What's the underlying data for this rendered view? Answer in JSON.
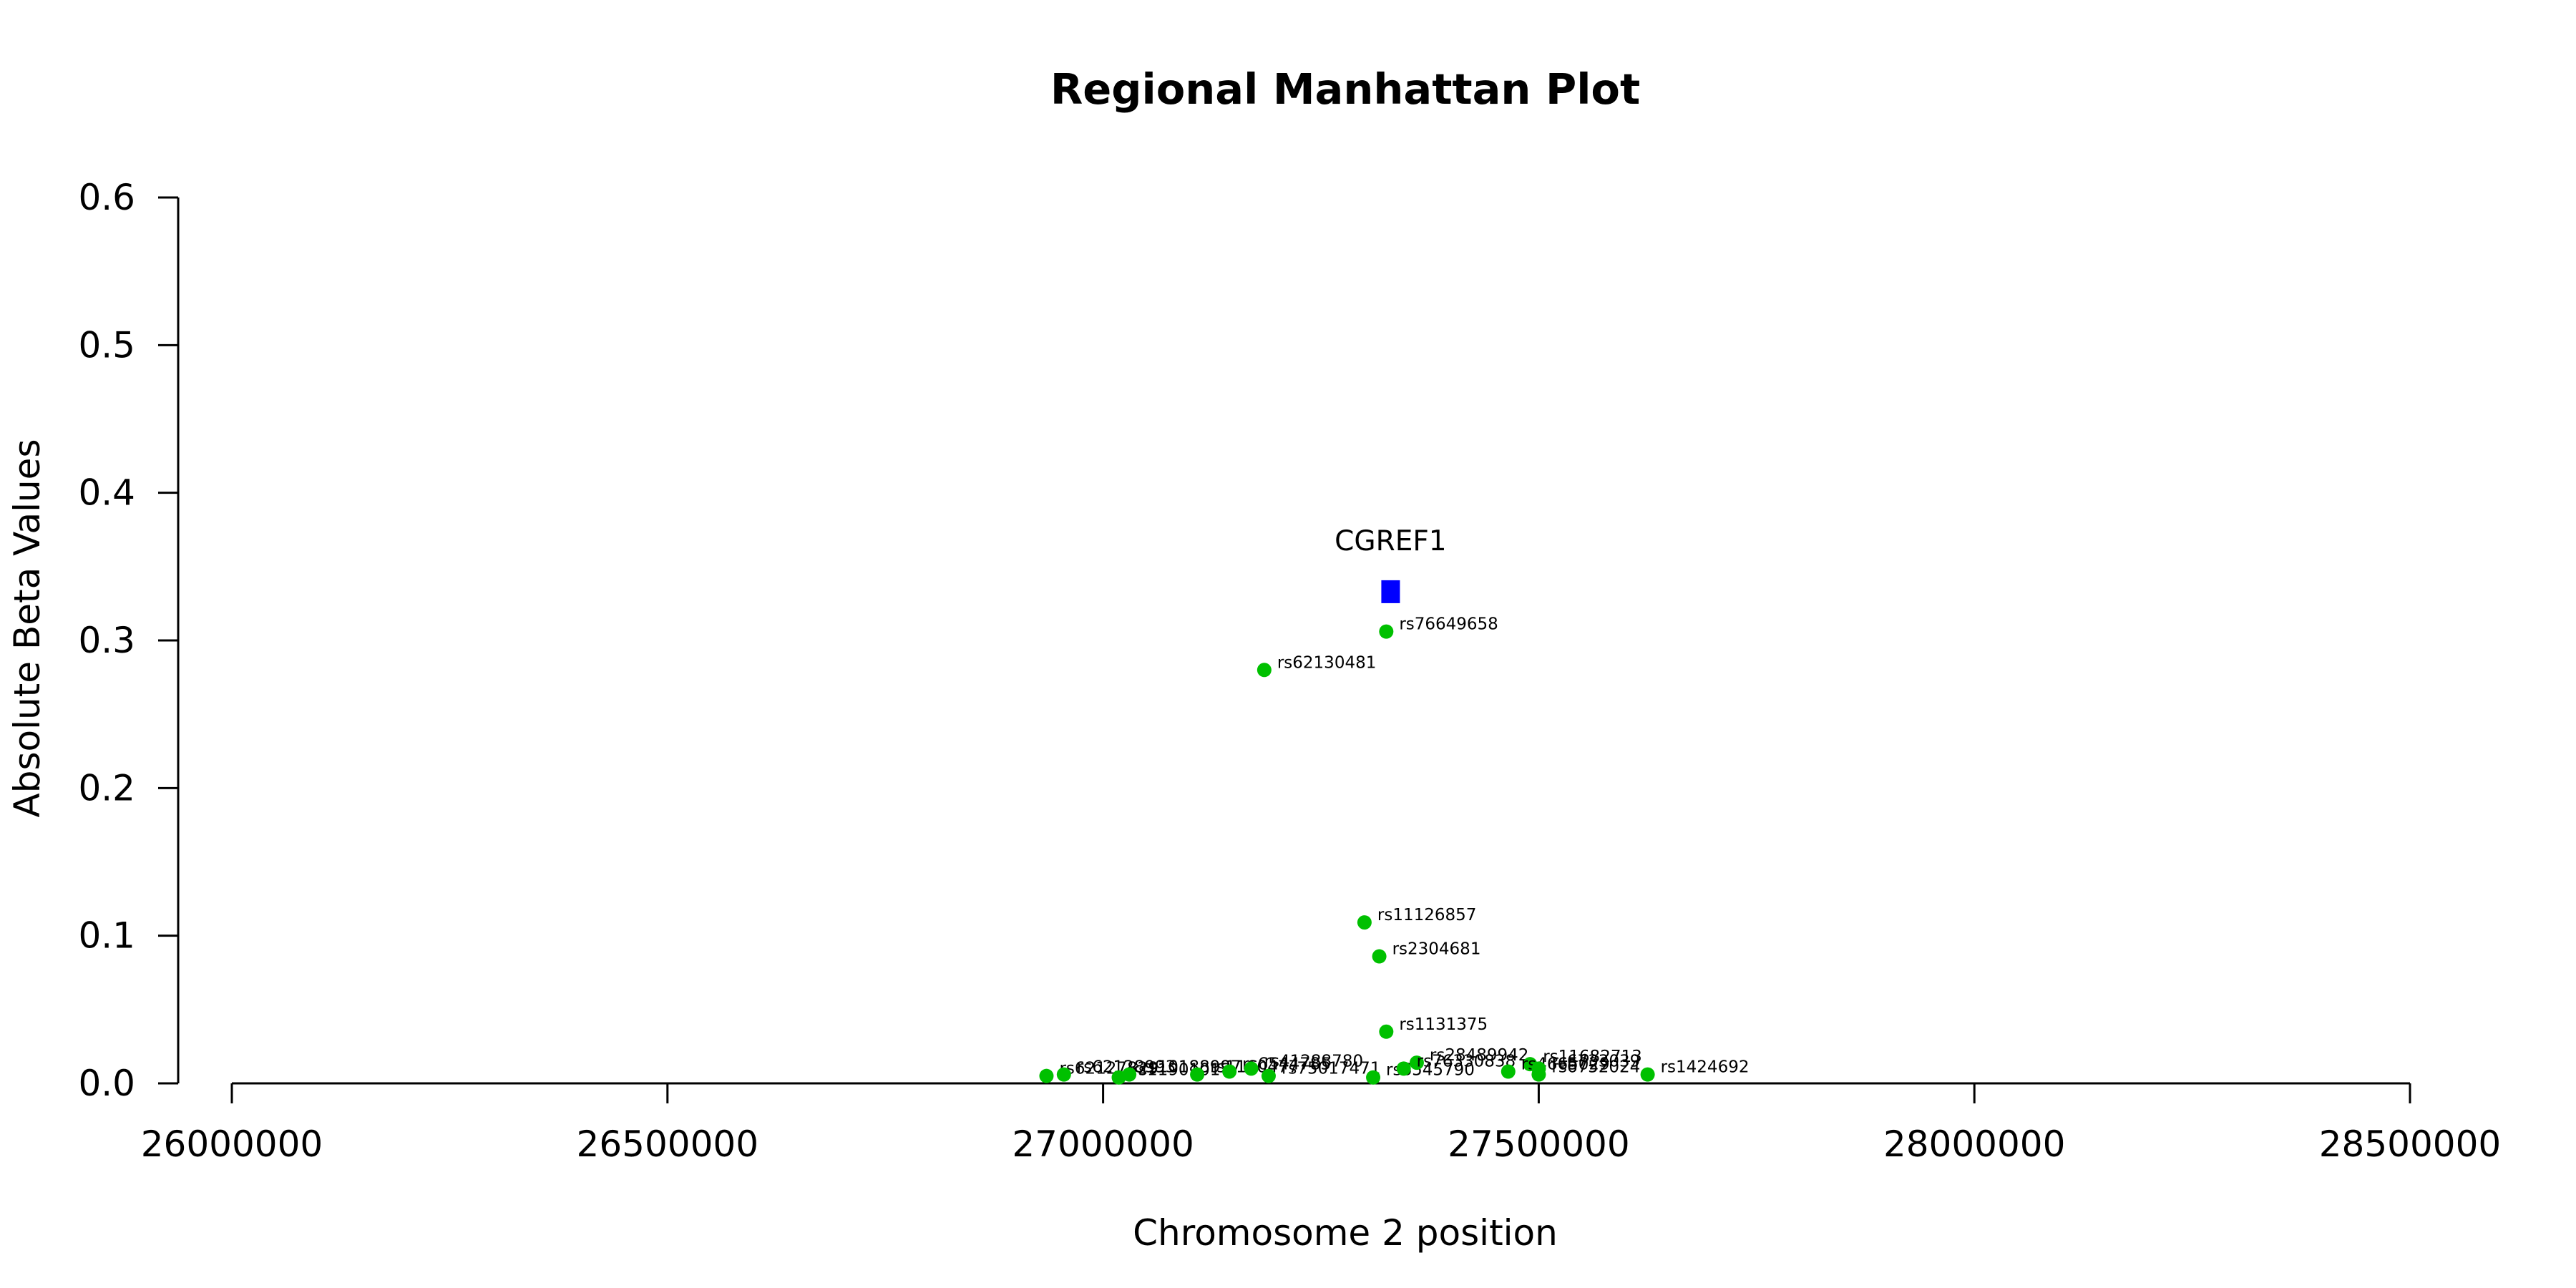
{
  "chart_data": {
    "type": "scatter",
    "title": "Regional Manhattan Plot",
    "xlabel": "Chromosome 2 position",
    "ylabel": "Absolute Beta Values",
    "xlim": [
      26000000,
      28500000
    ],
    "ylim": [
      0,
      0.6
    ],
    "x_ticks": [
      26000000,
      26500000,
      27000000,
      27500000,
      28000000,
      28500000
    ],
    "x_tick_labels": [
      "26000000",
      "26500000",
      "27000000",
      "27500000",
      "28000000",
      "28500000"
    ],
    "y_ticks": [
      0,
      0.1,
      0.2,
      0.3,
      0.4,
      0.5,
      0.6
    ],
    "y_tick_labels": [
      "0.0",
      "0.1",
      "0.2",
      "0.3",
      "0.4",
      "0.5",
      "0.6"
    ],
    "grid": false,
    "snp_color": "#00c000",
    "gene_color": "#0000ff",
    "gene": {
      "name": "CGREF1",
      "x": 27330000,
      "y": 0.333
    },
    "series": [
      {
        "name": "SNPs",
        "points": [
          {
            "label": "rs76649658",
            "x": 27325000,
            "y": 0.306
          },
          {
            "label": "rs62130481",
            "x": 27185000,
            "y": 0.28
          },
          {
            "label": "rs11126857",
            "x": 27300000,
            "y": 0.109
          },
          {
            "label": "rs2304681",
            "x": 27317000,
            "y": 0.086
          },
          {
            "label": "rs1131375",
            "x": 27325000,
            "y": 0.035
          },
          {
            "label": "rs62127829",
            "x": 26935000,
            "y": 0.005
          },
          {
            "label": "rs62128993",
            "x": 26955000,
            "y": 0.006
          },
          {
            "label": "rs11901017",
            "x": 27018000,
            "y": 0.004
          },
          {
            "label": "rs10188997",
            "x": 27030000,
            "y": 0.006
          },
          {
            "label": "rs1160477",
            "x": 27108000,
            "y": 0.006
          },
          {
            "label": "rs6544785",
            "x": 27145000,
            "y": 0.008
          },
          {
            "label": "rs41288780",
            "x": 27170000,
            "y": 0.01
          },
          {
            "label": "rs75017471",
            "x": 27190000,
            "y": 0.005
          },
          {
            "label": "rs6545790",
            "x": 27310000,
            "y": 0.004
          },
          {
            "label": "rs28489942",
            "x": 27360000,
            "y": 0.014
          },
          {
            "label": "rs76330838",
            "x": 27345000,
            "y": 0.01
          },
          {
            "label": "rs11682713",
            "x": 27490000,
            "y": 0.013
          },
          {
            "label": "rs4665029",
            "x": 27465000,
            "y": 0.008
          },
          {
            "label": "rs6733039",
            "x": 27500000,
            "y": 0.01
          },
          {
            "label": "rs6752024",
            "x": 27500000,
            "y": 0.006
          },
          {
            "label": "rs1424692",
            "x": 27625000,
            "y": 0.006
          }
        ]
      }
    ]
  }
}
